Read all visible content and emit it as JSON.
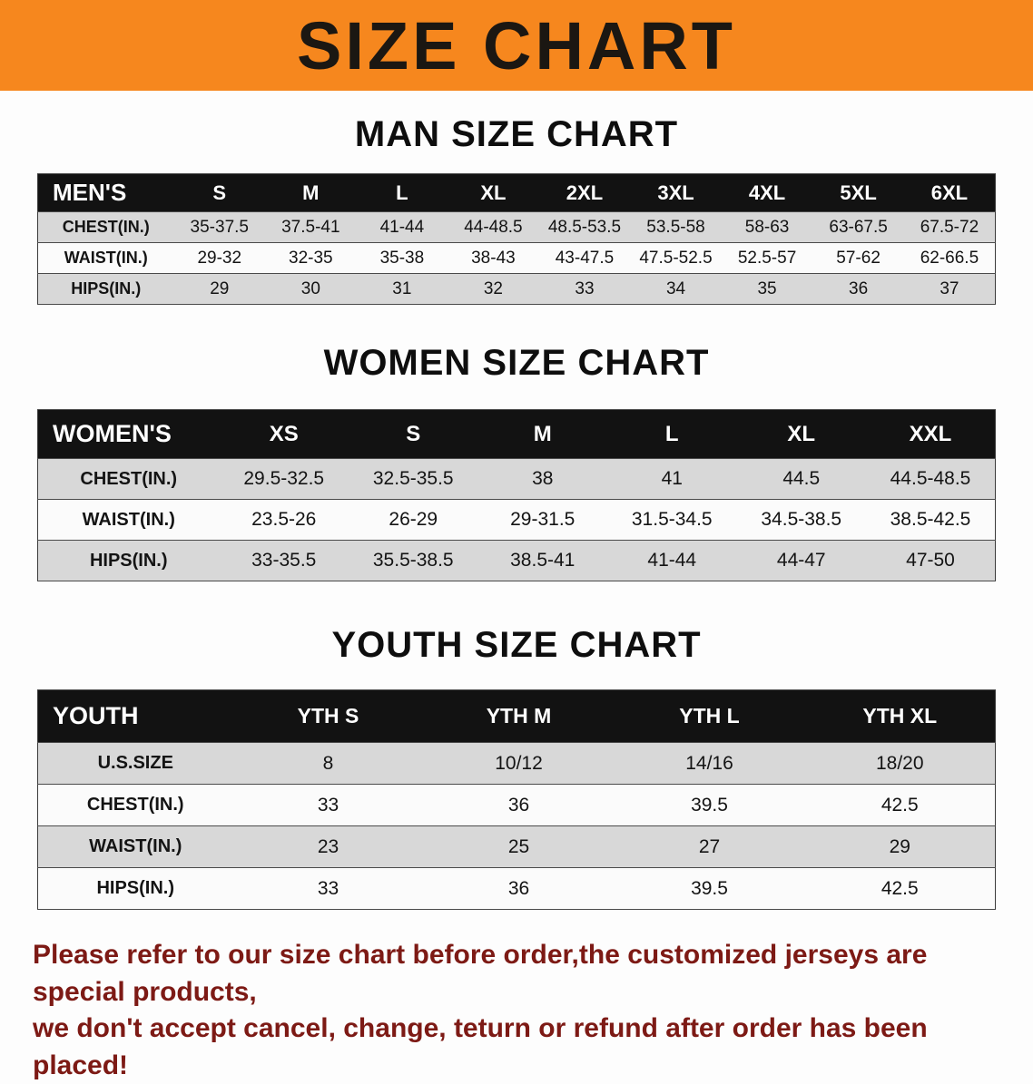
{
  "banner": {
    "title": "SIZE CHART",
    "background_color": "#f6871e",
    "text_color": "#1b1712"
  },
  "chart_data": [
    {
      "type": "table",
      "title": "MAN SIZE CHART",
      "columns": [
        "MEN'S",
        "S",
        "M",
        "L",
        "XL",
        "2XL",
        "3XL",
        "4XL",
        "5XL",
        "6XL"
      ],
      "rows": [
        [
          "CHEST(IN.)",
          "35-37.5",
          "37.5-41",
          "41-44",
          "44-48.5",
          "48.5-53.5",
          "53.5-58",
          "58-63",
          "63-67.5",
          "67.5-72"
        ],
        [
          "WAIST(IN.)",
          "29-32",
          "32-35",
          "35-38",
          "38-43",
          "43-47.5",
          "47.5-52.5",
          "52.5-57",
          "57-62",
          "62-66.5"
        ],
        [
          "HIPS(IN.)",
          "29",
          "30",
          "31",
          "32",
          "33",
          "34",
          "35",
          "36",
          "37"
        ]
      ],
      "header_bg": "#121212",
      "stripe_color": "#d8d8d8"
    },
    {
      "type": "table",
      "title": "WOMEN SIZE CHART",
      "columns": [
        "WOMEN'S",
        "XS",
        "S",
        "M",
        "L",
        "XL",
        "XXL"
      ],
      "rows": [
        [
          "CHEST(IN.)",
          "29.5-32.5",
          "32.5-35.5",
          "38",
          "41",
          "44.5",
          "44.5-48.5"
        ],
        [
          "WAIST(IN.)",
          "23.5-26",
          "26-29",
          "29-31.5",
          "31.5-34.5",
          "34.5-38.5",
          "38.5-42.5"
        ],
        [
          "HIPS(IN.)",
          "33-35.5",
          "35.5-38.5",
          "38.5-41",
          "41-44",
          "44-47",
          "47-50"
        ]
      ],
      "header_bg": "#121212",
      "stripe_color": "#d8d8d8"
    },
    {
      "type": "table",
      "title": "YOUTH SIZE CHART",
      "columns": [
        "YOUTH",
        "YTH S",
        "YTH M",
        "YTH L",
        "YTH XL"
      ],
      "rows": [
        [
          "U.S.SIZE",
          "8",
          "10/12",
          "14/16",
          "18/20"
        ],
        [
          "CHEST(IN.)",
          "33",
          "36",
          "39.5",
          "42.5"
        ],
        [
          "WAIST(IN.)",
          "23",
          "25",
          "27",
          "29"
        ],
        [
          "HIPS(IN.)",
          "33",
          "36",
          "39.5",
          "42.5"
        ]
      ],
      "header_bg": "#121212",
      "stripe_color": "#d8d8d8"
    }
  ],
  "footer": {
    "lines": [
      "Please refer to our size chart before order,the customized jerseys are special products,",
      "we don't accept cancel, change, teturn or refund after order has been placed!"
    ],
    "text_color": "#7d1a15"
  }
}
